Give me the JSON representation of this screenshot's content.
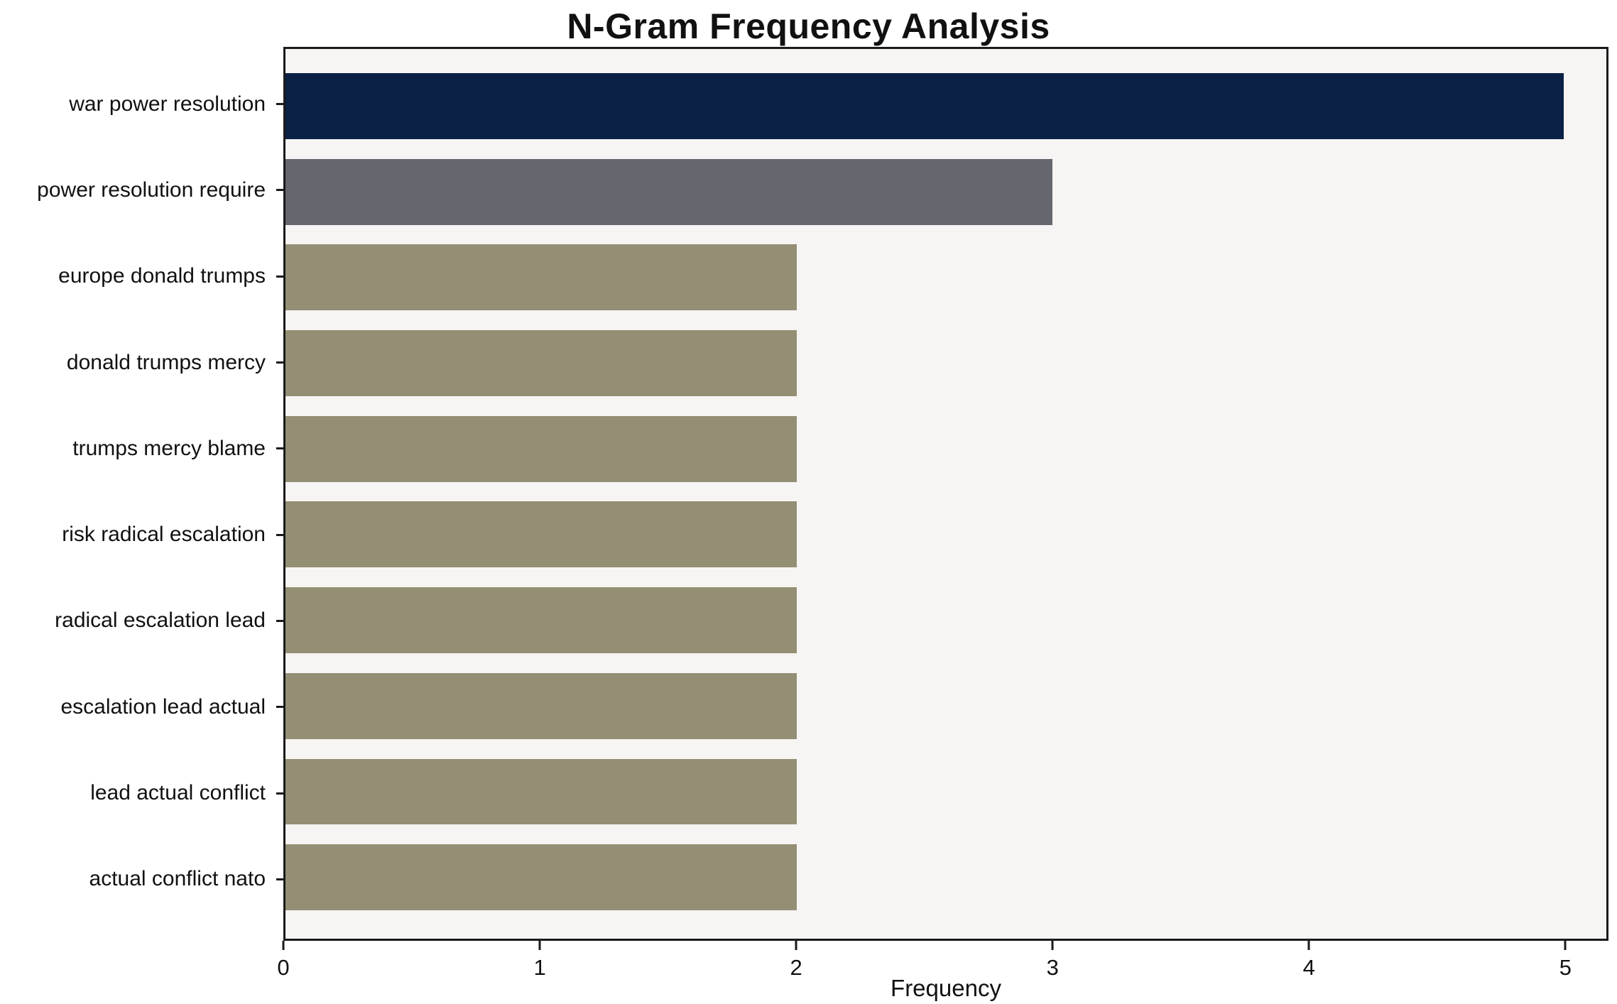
{
  "chart_data": {
    "type": "bar",
    "orientation": "horizontal",
    "title": "N-Gram Frequency Analysis",
    "xlabel": "Frequency",
    "ylabel": "",
    "categories": [
      "war power resolution",
      "power resolution require",
      "europe donald trumps",
      "donald trumps mercy",
      "trumps mercy blame",
      "risk radical escalation",
      "radical escalation lead",
      "escalation lead actual",
      "lead actual conflict",
      "actual conflict nato"
    ],
    "values": [
      5,
      3,
      2,
      2,
      2,
      2,
      2,
      2,
      2,
      2
    ],
    "bar_colors": [
      "#0b2045",
      "#66666e",
      "#948e74",
      "#948e74",
      "#948e74",
      "#948e74",
      "#948e74",
      "#948e74",
      "#948e74",
      "#948e74"
    ],
    "xlim": [
      0,
      5.168
    ],
    "xticks": [
      0,
      1,
      2,
      3,
      4,
      5
    ],
    "plot_background": "#f6f5f3",
    "grid": false,
    "legend": null
  }
}
